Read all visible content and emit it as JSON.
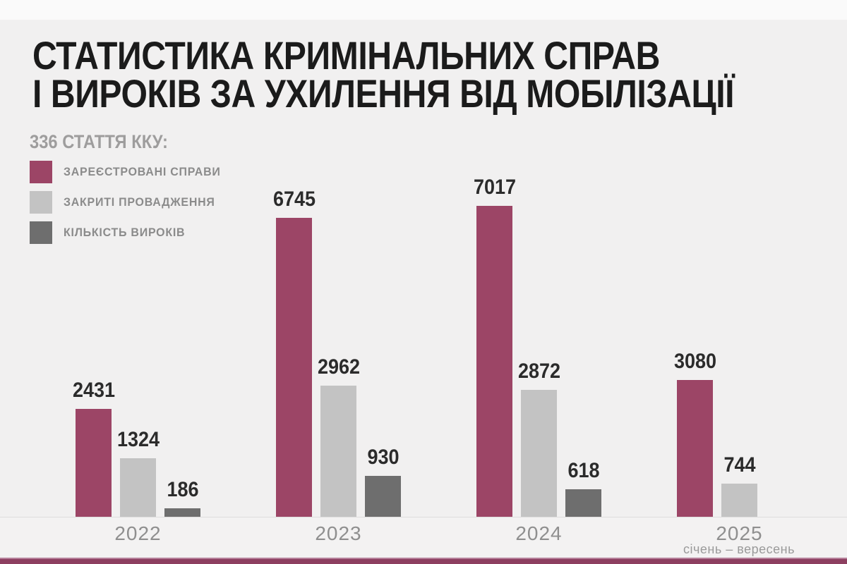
{
  "title": {
    "line1": "СТАТИСТИКА КРИМІНАЛЬНИХ СПРАВ",
    "line2": "І ВИРОКІВ ЗА УХИЛЕННЯ ВІД МОБІЛІЗАЦІЇ"
  },
  "legend": {
    "title": "336 СТАТТЯ ККУ:",
    "items": [
      {
        "key": "registered",
        "label": "ЗАРЕЄСТРОВАНІ СПРАВИ",
        "color": "#9c4566"
      },
      {
        "key": "closed",
        "label": "ЗАКРИТІ ПРОВАДЖЕННЯ",
        "color": "#c3c3c3"
      },
      {
        "key": "verdicts",
        "label": "КІЛЬКІСТЬ ВИРОКІВ",
        "color": "#6e6e6e"
      }
    ]
  },
  "chart_data": {
    "type": "bar",
    "title": "СТАТИСТИКА КРИМІНАЛЬНИХ СПРАВ І ВИРОКІВ ЗА УХИЛЕННЯ ВІД МОБІЛІЗАЦІЇ",
    "subtitle": "336 СТАТТЯ ККУ",
    "categories": [
      "2022",
      "2023",
      "2024",
      "2025"
    ],
    "category_notes": [
      "",
      "",
      "",
      "січень – вересень"
    ],
    "series": [
      {
        "name": "ЗАРЕЄСТРОВАНІ СПРАВИ",
        "color": "#9c4566",
        "values": [
          2431,
          6745,
          7017,
          3080
        ]
      },
      {
        "name": "ЗАКРИТІ ПРОВАДЖЕННЯ",
        "color": "#c3c3c3",
        "values": [
          1324,
          2962,
          2872,
          744
        ]
      },
      {
        "name": "КІЛЬКІСТЬ ВИРОКІВ",
        "color": "#6e6e6e",
        "values": [
          186,
          930,
          618,
          null
        ]
      }
    ],
    "ylim": [
      0,
      7017
    ],
    "value_labels": true,
    "grid": false,
    "legend_position": "top-left"
  },
  "colors": {
    "background": "#f1f0f0",
    "top_band": "#fafafa",
    "title_text": "#1b1b1b",
    "value_text": "#2b2b2b",
    "category_text": "#8f8f8f",
    "legend_text": "#8b8b8b",
    "baseline": "#dedddd",
    "bottom_strip": "#8d3f60"
  }
}
